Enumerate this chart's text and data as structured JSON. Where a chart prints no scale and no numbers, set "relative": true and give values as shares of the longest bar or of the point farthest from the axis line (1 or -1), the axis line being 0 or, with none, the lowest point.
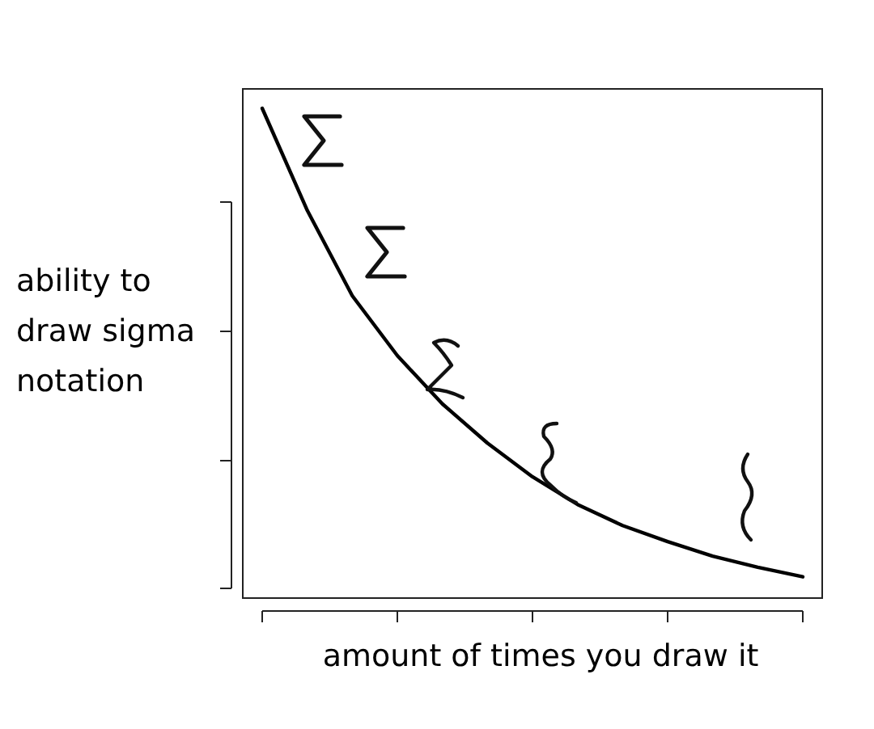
{
  "chart_data": {
    "type": "line",
    "relative": true,
    "xlabel": "amount of times you draw it",
    "ylabel": "ability to draw sigma notation",
    "categories": [
      null,
      null,
      null,
      null,
      null,
      null,
      null,
      null,
      null,
      null,
      null,
      null,
      null
    ],
    "values": [
      1,
      0.797,
      0.627,
      0.508,
      0.412,
      0.334,
      0.267,
      0.212,
      0.17,
      0.138,
      0.109,
      0.087,
      0.068
    ],
    "color": "#000000",
    "grid": false,
    "marker": "none",
    "line_style": "solid"
  }
}
